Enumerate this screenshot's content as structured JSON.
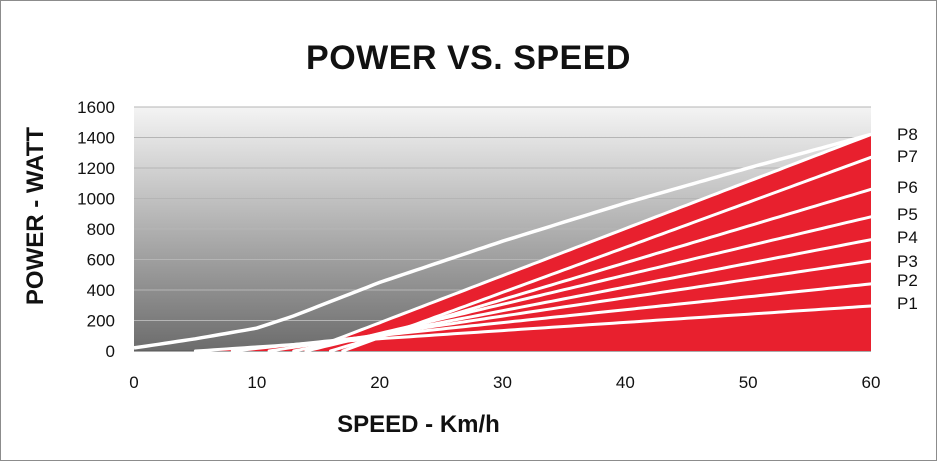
{
  "chart_data": {
    "type": "area",
    "title": "POWER VS. SPEED",
    "xlabel": "SPEED - Km/h",
    "ylabel": "POWER - WATT",
    "xlim": [
      0,
      60
    ],
    "ylim": [
      0,
      1600
    ],
    "x_ticks": [
      "0",
      "10",
      "20",
      "30",
      "40",
      "50",
      "60"
    ],
    "y_ticks": [
      "0",
      "200",
      "400",
      "600",
      "800",
      "1000",
      "1200",
      "1400",
      "1600"
    ],
    "grid": true,
    "legend": "right (labels at line ends)",
    "colors": {
      "fill": "#e8202e",
      "separator": "#ffffff",
      "background_top": "#f2f2f2",
      "background_bottom": "#6e6e6e"
    },
    "envelope": {
      "x": [
        0,
        5,
        10,
        13,
        20,
        30,
        40,
        50,
        60
      ],
      "values": [
        20,
        80,
        150,
        230,
        450,
        720,
        970,
        1200,
        1420
      ]
    },
    "series": [
      {
        "name": "P1",
        "x_start": 5,
        "value_at_60": 295
      },
      {
        "name": "P2",
        "x_start": 8,
        "value_at_60": 440
      },
      {
        "name": "P3",
        "x_start": 11,
        "value_at_60": 590
      },
      {
        "name": "P4",
        "x_start": 13,
        "value_at_60": 730
      },
      {
        "name": "P5",
        "x_start": 14,
        "value_at_60": 880
      },
      {
        "name": "P6",
        "x_start": 16,
        "value_at_60": 1060
      },
      {
        "name": "P7",
        "x_start": 17,
        "value_at_60": 1270
      },
      {
        "name": "P8",
        "x_start": 14,
        "value_at_60": 1420
      }
    ]
  }
}
